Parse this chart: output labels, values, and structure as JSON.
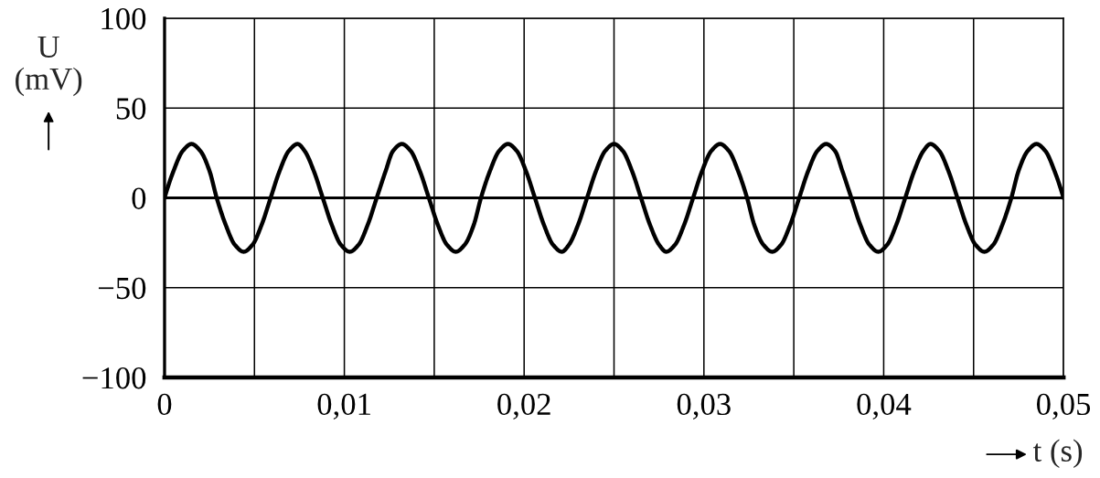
{
  "chart_data": {
    "type": "line",
    "xlabel": "t (s)",
    "ylabel": "U (mV)",
    "x": [
      0.0,
      0.0005,
      0.001,
      0.0015,
      0.002,
      0.0025,
      0.0029,
      0.0034,
      0.0039,
      0.0044,
      0.0049,
      0.0054,
      0.0059,
      0.0064,
      0.0069,
      0.0074,
      0.0078,
      0.0083,
      0.0088,
      0.0093,
      0.0098,
      0.0103,
      0.0108,
      0.0113,
      0.0118,
      0.0123,
      0.0127,
      0.0132,
      0.0137,
      0.0142,
      0.0147,
      0.0152,
      0.0157,
      0.0162,
      0.0167,
      0.0172,
      0.0176,
      0.0181,
      0.0186,
      0.0191,
      0.0196,
      0.0201,
      0.0206,
      0.0211,
      0.0216,
      0.0221,
      0.0225,
      0.023,
      0.0235,
      0.024,
      0.0245,
      0.025,
      0.0255,
      0.026,
      0.0265,
      0.027,
      0.0275,
      0.0279,
      0.0284,
      0.0289,
      0.0294,
      0.0299,
      0.0304,
      0.0309,
      0.0314,
      0.0319,
      0.0324,
      0.0328,
      0.0333,
      0.0338,
      0.0343,
      0.0348,
      0.0353,
      0.0358,
      0.0363,
      0.0368,
      0.0373,
      0.0377,
      0.0382,
      0.0387,
      0.0392,
      0.0397,
      0.0402,
      0.0407,
      0.0412,
      0.0417,
      0.0422,
      0.0426,
      0.0431,
      0.0436,
      0.0441,
      0.0446,
      0.0451,
      0.0456,
      0.0461,
      0.0466,
      0.0471,
      0.0475,
      0.048,
      0.0485,
      0.049,
      0.0495,
      0.05
    ],
    "series": [
      {
        "color": "#000000",
        "values": [
          0,
          15,
          26,
          30,
          26,
          15,
          0,
          -15,
          -26,
          -30,
          -26,
          -15,
          0,
          15,
          26,
          30,
          26,
          15,
          0,
          -15,
          -26,
          -30,
          -26,
          -15,
          0,
          15,
          26,
          30,
          26,
          15,
          0,
          -15,
          -26,
          -30,
          -26,
          -15,
          0,
          15,
          26,
          30,
          26,
          15,
          0,
          -15,
          -26,
          -30,
          -26,
          -15,
          0,
          15,
          26,
          30,
          26,
          15,
          0,
          -15,
          -26,
          -30,
          -26,
          -15,
          0,
          15,
          26,
          30,
          26,
          15,
          0,
          -15,
          -26,
          -30,
          -26,
          -15,
          0,
          15,
          26,
          30,
          26,
          15,
          0,
          -15,
          -26,
          -30,
          -26,
          -15,
          0,
          15,
          26,
          30,
          26,
          15,
          0,
          -15,
          -26,
          -30,
          -26,
          -15,
          0,
          15,
          26,
          30,
          26,
          15,
          0
        ]
      }
    ],
    "xlim": [
      0,
      0.05
    ],
    "ylim": [
      -100,
      100
    ],
    "xticks": [
      0,
      {
        "value": 0.005,
        "label": null
      },
      {
        "value": 0.01,
        "label": "0,01"
      },
      {
        "value": 0.015,
        "label": null
      },
      {
        "value": 0.02,
        "label": "0,02"
      },
      {
        "value": 0.025,
        "label": null
      },
      {
        "value": 0.03,
        "label": "0,03"
      },
      {
        "value": 0.035,
        "label": null
      },
      {
        "value": 0.04,
        "label": "0,04"
      },
      {
        "value": 0.045,
        "label": null
      },
      {
        "value": 0.05,
        "label": "0,05"
      }
    ],
    "yticks": [
      {
        "value": -100,
        "label": "−100"
      },
      {
        "value": -50,
        "label": "−50"
      },
      0,
      50,
      100
    ],
    "grid": true,
    "line_style": "solid",
    "ref_lines": [
      {
        "axis": "y",
        "value": 0,
        "color": "#000000"
      }
    ]
  }
}
